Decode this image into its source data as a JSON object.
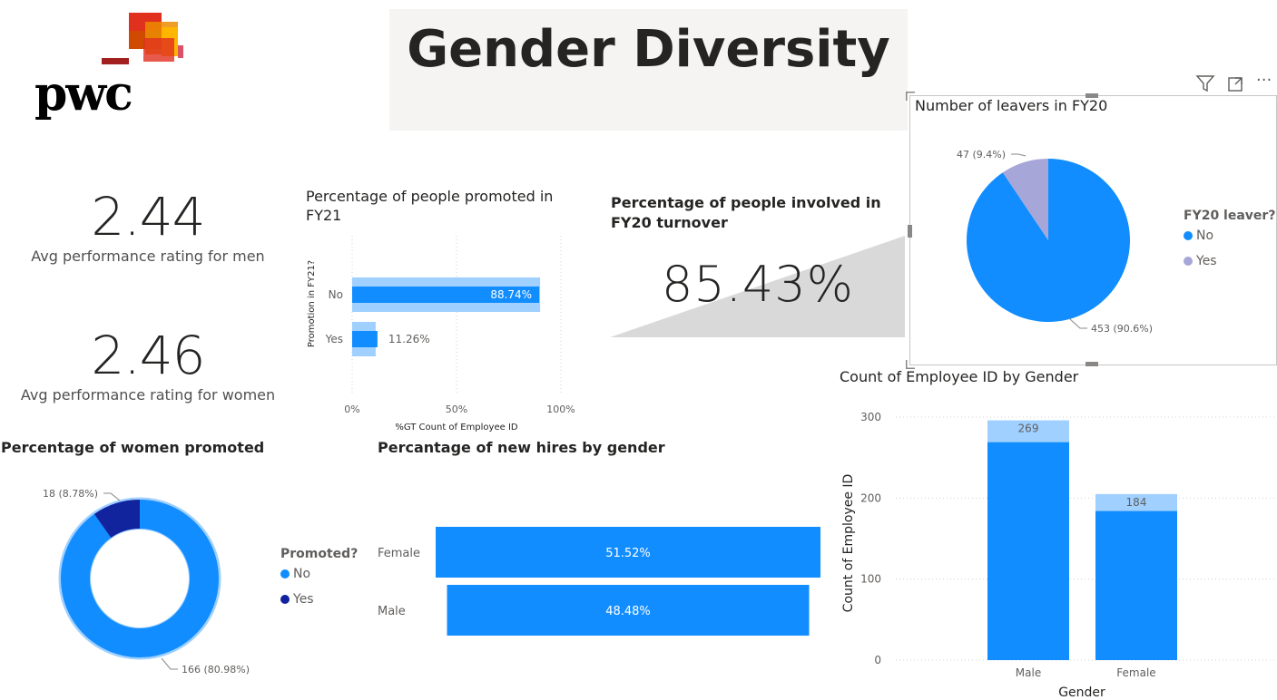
{
  "header": {
    "title": "Gender Diversity",
    "logo_text": "pwc"
  },
  "kpis": {
    "men": {
      "value": "2.44",
      "label": "Avg performance rating for men"
    },
    "women": {
      "value": "2.46",
      "label": "Avg performance rating for women"
    },
    "turnover": {
      "title": "Percentage of people involved in FY20 turnover",
      "value": "85.43%"
    }
  },
  "toolbar": {
    "filter_icon": "filter-icon",
    "focus_icon": "focus-mode-icon",
    "more_icon": "more-options-icon",
    "more_label": "···"
  },
  "colors": {
    "primary": "#118dff",
    "light": "#9fd0ff",
    "dark_navy": "#12239e",
    "lavender": "#a6a6d8",
    "title_bg": "#f5f4f3"
  },
  "chart_data": [
    {
      "id": "promoted_fy21",
      "type": "bar",
      "title": "Percentage of people promoted in FY21",
      "ylabel": "Promotion in FY21?",
      "xlabel": "%GT Count of Employee ID",
      "categories": [
        "No",
        "Yes"
      ],
      "values": [
        88.74,
        11.26
      ],
      "value_labels": [
        "88.74%",
        "11.26%"
      ],
      "xticks": [
        "0%",
        "50%",
        "100%"
      ],
      "xlim": [
        0,
        100
      ]
    },
    {
      "id": "leavers_fy20",
      "type": "pie",
      "title": "Number of leavers in FY20",
      "legend_title": "FY20 leaver?",
      "categories": [
        "No",
        "Yes"
      ],
      "values": [
        453,
        47
      ],
      "value_labels": [
        "453 (90.6%)",
        "47 (9.4%)"
      ],
      "legend": "right"
    },
    {
      "id": "women_promoted",
      "type": "pie",
      "title": "Percentage of women promoted",
      "legend_title": "Promoted?",
      "categories": [
        "No",
        "Yes"
      ],
      "values": [
        166,
        18
      ],
      "value_labels": [
        "166 (80.98%)",
        "18 (8.78%)"
      ],
      "legend": "right"
    },
    {
      "id": "new_hires",
      "type": "bar",
      "title": "Percantage of new hires by gender",
      "categories": [
        "Female",
        "Male"
      ],
      "values": [
        51.52,
        48.48
      ],
      "value_labels": [
        "51.52%",
        "48.48%"
      ]
    },
    {
      "id": "count_by_gender",
      "type": "bar",
      "title": "Count of Employee ID by Gender",
      "xlabel": "Gender",
      "ylabel": "Count of Employee ID",
      "categories": [
        "Male",
        "Female"
      ],
      "values": [
        269,
        184
      ],
      "totals": [
        296,
        205
      ],
      "value_labels": [
        "269",
        "184"
      ],
      "yticks": [
        "0",
        "100",
        "200",
        "300"
      ],
      "ylim": [
        0,
        300
      ]
    }
  ]
}
